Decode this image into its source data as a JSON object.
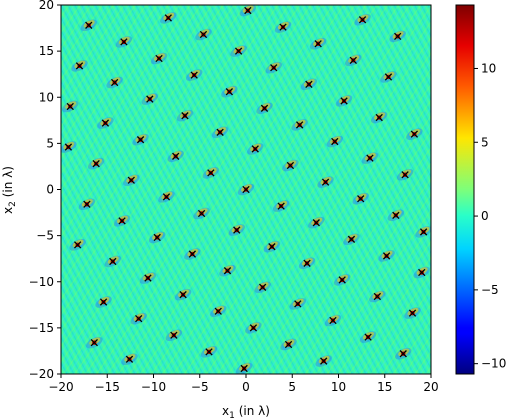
{
  "chart_data": {
    "type": "heatmap",
    "xlabel_prefix": "x",
    "xlabel_sub": "1",
    "xlabel_suffix": " (in λ)",
    "ylabel_prefix": "x",
    "ylabel_sub": "2",
    "ylabel_suffix": " (in λ)",
    "xlim": [
      -20,
      20
    ],
    "ylim": [
      -20,
      20
    ],
    "x_ticks": [
      -20,
      -15,
      -10,
      -5,
      0,
      5,
      10,
      15,
      20
    ],
    "y_ticks": [
      -20,
      -15,
      -10,
      -5,
      0,
      5,
      10,
      15,
      20
    ],
    "colorbar_range": [
      -10.7,
      14.3
    ],
    "colorbar_ticks": [
      -10,
      -5,
      0,
      5,
      10
    ],
    "colormap": "jet",
    "grid": false,
    "lattice_vectors": [
      [
        4.8,
        2.6
      ],
      [
        -3.8,
        1.8
      ]
    ],
    "marker": "x",
    "marker_color": "#000000",
    "points": [
      [
        0,
        0
      ],
      [
        4.8,
        2.6
      ],
      [
        -4.8,
        -2.6
      ],
      [
        9.6,
        5.2
      ],
      [
        -9.6,
        -5.2
      ],
      [
        14.4,
        7.8
      ],
      [
        -14.4,
        -7.8
      ],
      [
        -3.8,
        1.8
      ],
      [
        1.0,
        4.4
      ],
      [
        -8.6,
        -0.8
      ],
      [
        5.8,
        7.0
      ],
      [
        -13.4,
        -3.4
      ],
      [
        10.6,
        9.6
      ],
      [
        -18.2,
        -6.0
      ],
      [
        15.4,
        12.2
      ],
      [
        3.8,
        -1.8
      ],
      [
        8.6,
        0.8
      ],
      [
        -1.0,
        -4.4
      ],
      [
        13.4,
        3.4
      ],
      [
        -5.8,
        -7.0
      ],
      [
        18.2,
        6.0
      ],
      [
        -10.6,
        -9.6
      ],
      [
        -15.4,
        -12.2
      ],
      [
        -7.6,
        3.6
      ],
      [
        -2.8,
        6.2
      ],
      [
        -12.4,
        1.0
      ],
      [
        2.0,
        8.8
      ],
      [
        -17.2,
        -1.6
      ],
      [
        6.8,
        11.4
      ],
      [
        11.6,
        14.0
      ],
      [
        16.4,
        16.6
      ],
      [
        7.6,
        -3.6
      ],
      [
        12.4,
        -1.0
      ],
      [
        2.8,
        -6.2
      ],
      [
        17.2,
        1.6
      ],
      [
        -2.0,
        -8.8
      ],
      [
        -6.8,
        -11.4
      ],
      [
        -11.6,
        -14.0
      ],
      [
        -16.4,
        -16.6
      ],
      [
        -11.4,
        5.4
      ],
      [
        -6.6,
        8.0
      ],
      [
        -16.2,
        2.8
      ],
      [
        -1.8,
        10.6
      ],
      [
        3.0,
        13.2
      ],
      [
        7.8,
        15.8
      ],
      [
        12.6,
        18.4
      ],
      [
        11.4,
        -5.4
      ],
      [
        16.2,
        -2.8
      ],
      [
        6.6,
        -8.0
      ],
      [
        1.8,
        -10.6
      ],
      [
        -3.0,
        -13.2
      ],
      [
        -7.8,
        -15.8
      ],
      [
        -12.6,
        -18.4
      ],
      [
        -15.2,
        7.2
      ],
      [
        -10.4,
        9.8
      ],
      [
        -5.6,
        12.4
      ],
      [
        -0.8,
        15.0
      ],
      [
        4.0,
        17.6
      ],
      [
        15.2,
        -7.2
      ],
      [
        10.4,
        -9.8
      ],
      [
        5.6,
        -12.4
      ],
      [
        0.8,
        -15.0
      ],
      [
        -4.0,
        -17.6
      ],
      [
        -19.0,
        9.0
      ],
      [
        -14.2,
        11.6
      ],
      [
        -9.4,
        14.2
      ],
      [
        -4.6,
        16.8
      ],
      [
        0.2,
        19.4
      ],
      [
        19.0,
        -9.0
      ],
      [
        14.2,
        -11.6
      ],
      [
        9.4,
        -14.2
      ],
      [
        4.6,
        -16.8
      ],
      [
        -0.2,
        -19.4
      ],
      [
        -18.0,
        13.4
      ],
      [
        -13.2,
        16.0
      ],
      [
        -8.4,
        18.6
      ],
      [
        18.0,
        -13.4
      ],
      [
        13.2,
        -16.0
      ],
      [
        8.4,
        -18.6
      ],
      [
        -17.0,
        17.8
      ],
      [
        17.0,
        -17.8
      ],
      [
        -19.2,
        4.6
      ],
      [
        19.2,
        -4.6
      ]
    ]
  }
}
